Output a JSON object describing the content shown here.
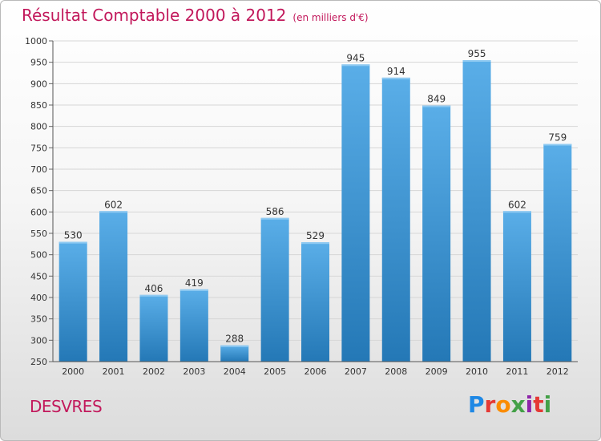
{
  "header": {
    "title": "Résultat Comptable 2000 à 2012",
    "subtitle": "(en milliers d'€)"
  },
  "footer": {
    "commune": "DESVRES",
    "brand_letters": [
      "P",
      "r",
      "o",
      "x",
      "i",
      "t",
      "i"
    ],
    "brand_colors": [
      "#1e88e5",
      "#e53935",
      "#fb8c00",
      "#43a047",
      "#8e24aa",
      "#e53935",
      "#43a047"
    ]
  },
  "colors": {
    "bar_top": "#5aaee8",
    "bar_bottom": "#2478b6",
    "title": "#c2185b",
    "grid": "#d6d6d6"
  },
  "chart_data": {
    "type": "bar",
    "title": "Résultat Comptable 2000 à 2012",
    "subtitle": "(en milliers d'€)",
    "categories": [
      "2000",
      "2001",
      "2002",
      "2003",
      "2004",
      "2005",
      "2006",
      "2007",
      "2008",
      "2009",
      "2010",
      "2011",
      "2012"
    ],
    "values": [
      530,
      602,
      406,
      419,
      288,
      586,
      529,
      945,
      914,
      849,
      955,
      602,
      759
    ],
    "ylim": [
      250,
      1000
    ],
    "yticks": [
      250,
      300,
      350,
      400,
      450,
      500,
      550,
      600,
      650,
      700,
      750,
      800,
      850,
      900,
      950,
      1000
    ],
    "grid": true
  }
}
